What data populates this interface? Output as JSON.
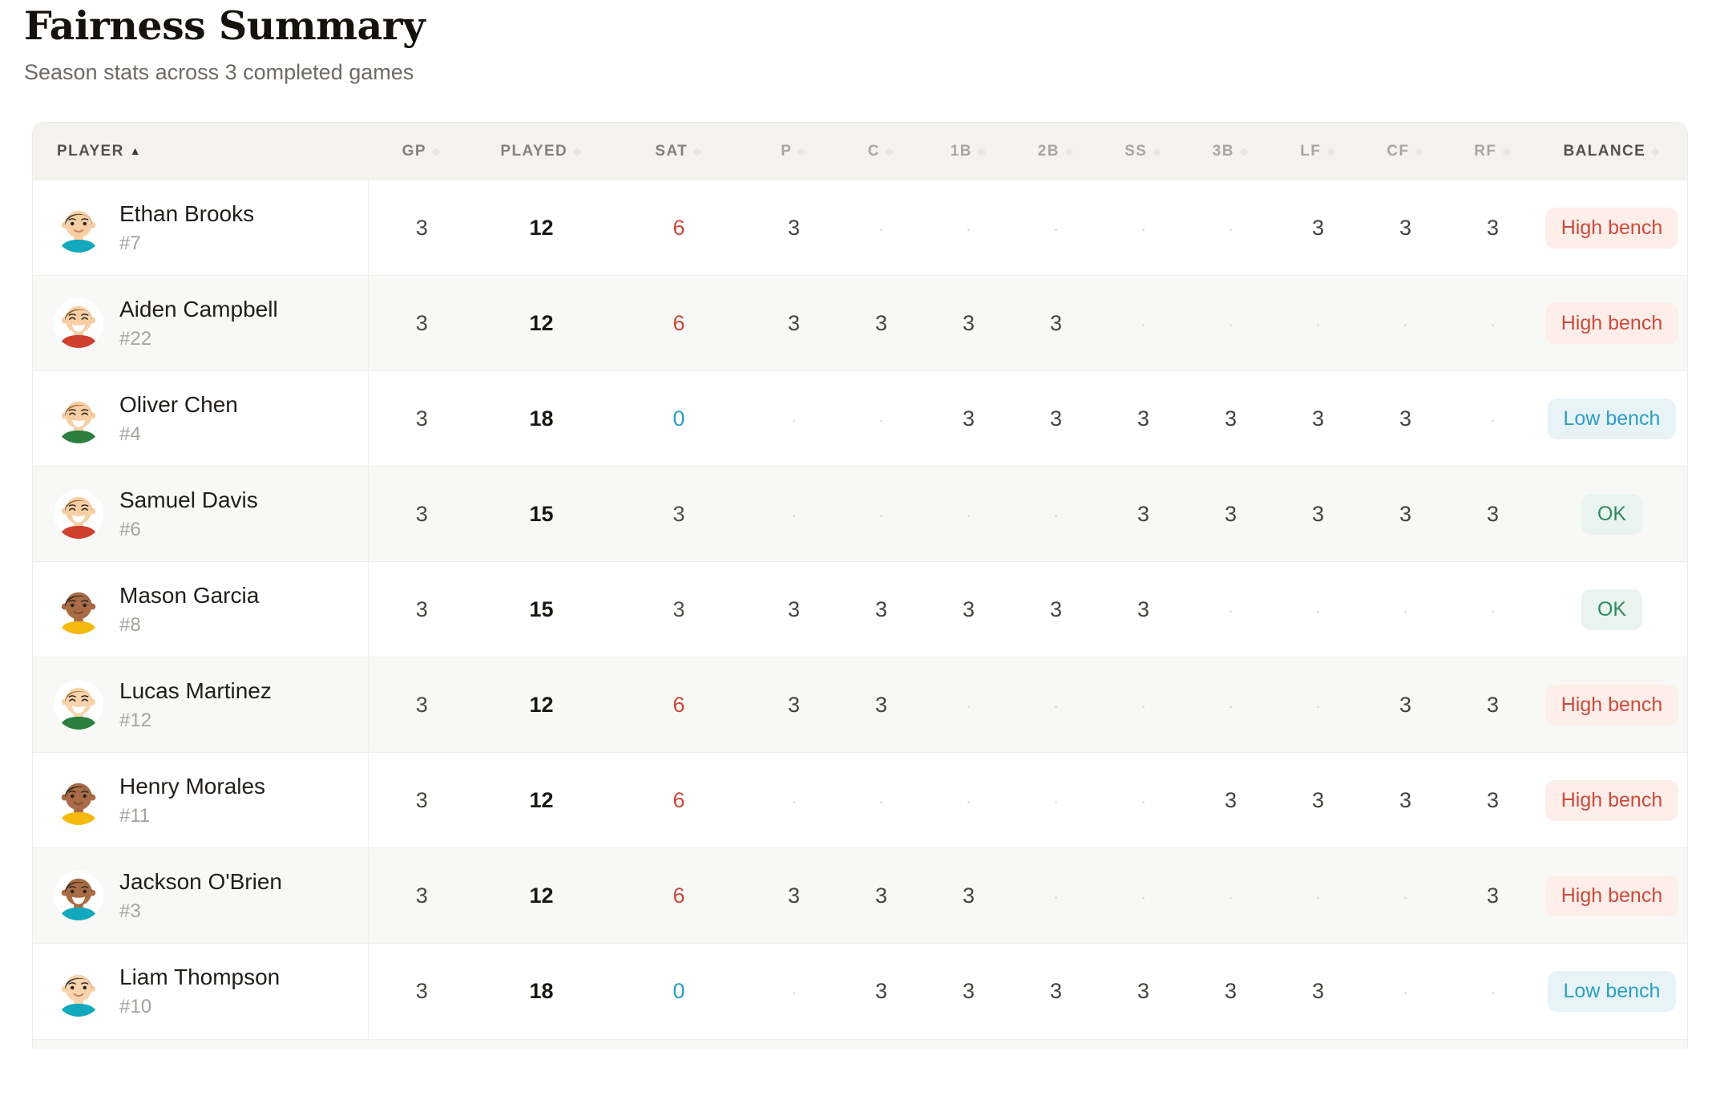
{
  "page": {
    "title": "Fairness Summary",
    "subtitle": "Season stats across 3 completed games"
  },
  "colors": {
    "accent_red": "#c9493a",
    "accent_teal": "#29a0c2",
    "accent_green": "#2d8a5e",
    "badge_high_bg": "#fdeeea",
    "badge_low_bg": "#e8f3f8",
    "badge_ok_bg": "#e9f4f0",
    "header_bg": "#f4f3f0",
    "stripe_bg": "#f8f8f6"
  },
  "table": {
    "columns": [
      {
        "key": "player",
        "label": "PLAYER",
        "tone": "dark",
        "align": "left",
        "sorted_asc": true
      },
      {
        "key": "gp",
        "label": "GP",
        "tone": "mid"
      },
      {
        "key": "played",
        "label": "PLAYED",
        "tone": "mid"
      },
      {
        "key": "sat",
        "label": "SAT",
        "tone": "mid"
      },
      {
        "key": "p",
        "label": "P",
        "tone": "light"
      },
      {
        "key": "c",
        "label": "C",
        "tone": "light"
      },
      {
        "key": "1b",
        "label": "1B",
        "tone": "light"
      },
      {
        "key": "2b",
        "label": "2B",
        "tone": "light"
      },
      {
        "key": "ss",
        "label": "SS",
        "tone": "light"
      },
      {
        "key": "3b",
        "label": "3B",
        "tone": "light"
      },
      {
        "key": "lf",
        "label": "LF",
        "tone": "light"
      },
      {
        "key": "cf",
        "label": "CF",
        "tone": "light"
      },
      {
        "key": "rf",
        "label": "RF",
        "tone": "light"
      },
      {
        "key": "balance",
        "label": "BALANCE",
        "tone": "dark"
      }
    ],
    "position_keys": [
      "p",
      "c",
      "1b",
      "2b",
      "ss",
      "3b",
      "lf",
      "cf",
      "rf"
    ],
    "rows": [
      {
        "name": "Ethan Brooks",
        "number": "#7",
        "gp": "3",
        "played": "12",
        "sat": "6",
        "sat_tone": "high",
        "positions": [
          "3",
          "",
          "",
          "",
          "",
          "",
          "3",
          "3",
          "3"
        ],
        "balance": {
          "label": "High bench",
          "tone": "high"
        },
        "avatar": {
          "skin": "#f8cfa4",
          "hair": "#3b332c",
          "shirt": "#12a8bd",
          "eyes": "dot",
          "mouth": "smile",
          "lip": "#c07a58"
        }
      },
      {
        "name": "Aiden Campbell",
        "number": "#22",
        "gp": "3",
        "played": "12",
        "sat": "6",
        "sat_tone": "high",
        "positions": [
          "3",
          "3",
          "3",
          "3",
          "",
          "",
          "",
          "",
          ""
        ],
        "balance": {
          "label": "High bench",
          "tone": "high"
        },
        "avatar": {
          "skin": "#f8cfa4",
          "hair": "#8d5a33",
          "shirt": "#cf3f2e",
          "eyes": "happy",
          "mouth": "grin",
          "lip": "#c07a58"
        }
      },
      {
        "name": "Oliver Chen",
        "number": "#4",
        "gp": "3",
        "played": "18",
        "sat": "0",
        "sat_tone": "low",
        "positions": [
          "",
          "",
          "3",
          "3",
          "3",
          "3",
          "3",
          "3",
          ""
        ],
        "balance": {
          "label": "Low bench",
          "tone": "low"
        },
        "avatar": {
          "skin": "#f8cfa4",
          "hair": "#9c622f",
          "shirt": "#2c7f3f",
          "eyes": "happy",
          "mouth": "grin",
          "lip": "#c07a58"
        }
      },
      {
        "name": "Samuel Davis",
        "number": "#6",
        "gp": "3",
        "played": "15",
        "sat": "3",
        "sat_tone": "normal",
        "positions": [
          "",
          "",
          "",
          "",
          "3",
          "3",
          "3",
          "3",
          "3"
        ],
        "balance": {
          "label": "OK",
          "tone": "ok"
        },
        "avatar": {
          "skin": "#f8cfa4",
          "hair": "#8d6238",
          "shirt": "#cf3f2e",
          "eyes": "happy",
          "mouth": "grin",
          "lip": "#c07a58"
        }
      },
      {
        "name": "Mason Garcia",
        "number": "#8",
        "gp": "3",
        "played": "15",
        "sat": "3",
        "sat_tone": "normal",
        "positions": [
          "3",
          "3",
          "3",
          "3",
          "3",
          "",
          "",
          "",
          ""
        ],
        "balance": {
          "label": "OK",
          "tone": "ok"
        },
        "avatar": {
          "skin": "#a96c46",
          "hair": "#2a211c",
          "shirt": "#f5b90f",
          "eyes": "dot",
          "mouth": "smile",
          "lip": "#7a4a2f"
        }
      },
      {
        "name": "Lucas Martinez",
        "number": "#12",
        "gp": "3",
        "played": "12",
        "sat": "6",
        "sat_tone": "high",
        "positions": [
          "3",
          "3",
          "",
          "",
          "",
          "",
          "",
          "3",
          "3"
        ],
        "balance": {
          "label": "High bench",
          "tone": "high"
        },
        "avatar": {
          "skin": "#f8d3ab",
          "hair": "#b07c3e",
          "shirt": "#2c7f3f",
          "eyes": "happy",
          "mouth": "grin",
          "lip": "#c07a58"
        }
      },
      {
        "name": "Henry Morales",
        "number": "#11",
        "gp": "3",
        "played": "12",
        "sat": "6",
        "sat_tone": "high",
        "positions": [
          "",
          "",
          "",
          "",
          "",
          "3",
          "3",
          "3",
          "3"
        ],
        "balance": {
          "label": "High bench",
          "tone": "high"
        },
        "avatar": {
          "skin": "#a96c46",
          "hair": "#2a211c",
          "shirt": "#f5b90f",
          "eyes": "dot",
          "mouth": "smile",
          "lip": "#7a4a2f"
        }
      },
      {
        "name": "Jackson O'Brien",
        "number": "#3",
        "gp": "3",
        "played": "12",
        "sat": "6",
        "sat_tone": "high",
        "positions": [
          "3",
          "3",
          "3",
          "",
          "",
          "",
          "",
          "",
          "3"
        ],
        "balance": {
          "label": "High bench",
          "tone": "high"
        },
        "avatar": {
          "skin": "#a96c44",
          "hair": "#3a2a20",
          "shirt": "#12a8bd",
          "eyes": "dot",
          "mouth": "grin",
          "lip": "#7a4a2f"
        }
      },
      {
        "name": "Liam Thompson",
        "number": "#10",
        "gp": "3",
        "played": "18",
        "sat": "0",
        "sat_tone": "low",
        "positions": [
          "",
          "3",
          "3",
          "3",
          "3",
          "3",
          "3",
          "",
          ""
        ],
        "balance": {
          "label": "Low bench",
          "tone": "low"
        },
        "avatar": {
          "skin": "#f8d3ab",
          "hair": "#332f2d",
          "shirt": "#12a8bd",
          "eyes": "dot",
          "mouth": "smile",
          "lip": "#c07a58"
        }
      }
    ]
  }
}
